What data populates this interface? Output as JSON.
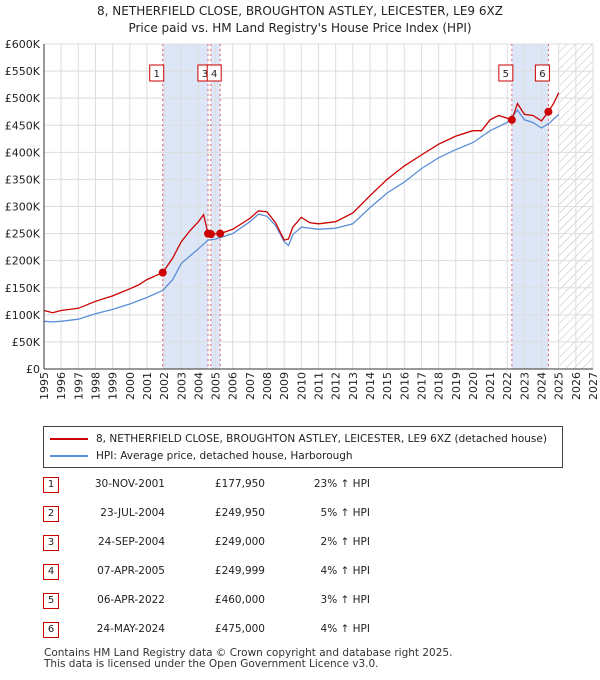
{
  "chart_data": {
    "type": "line",
    "title": "8, NETHERFIELD CLOSE, BROUGHTON ASTLEY, LEICESTER, LE9 6XZ",
    "subtitle": "Price paid vs. HM Land Registry's House Price Index (HPI)",
    "xlim": [
      1995,
      2027
    ],
    "ylim": [
      0,
      600000
    ],
    "x_ticks": [
      "1995",
      "1996",
      "1997",
      "1998",
      "1999",
      "2000",
      "2001",
      "2002",
      "2003",
      "2004",
      "2005",
      "2006",
      "2007",
      "2008",
      "2009",
      "2010",
      "2011",
      "2012",
      "2013",
      "2014",
      "2015",
      "2016",
      "2017",
      "2018",
      "2019",
      "2020",
      "2021",
      "2022",
      "2023",
      "2024",
      "2025",
      "2026",
      "2027"
    ],
    "y_ticks": [
      {
        "value": 0,
        "label": "£0"
      },
      {
        "value": 50000,
        "label": "£50K"
      },
      {
        "value": 100000,
        "label": "£100K"
      },
      {
        "value": 150000,
        "label": "£150K"
      },
      {
        "value": 200000,
        "label": "£200K"
      },
      {
        "value": 250000,
        "label": "£250K"
      },
      {
        "value": 300000,
        "label": "£300K"
      },
      {
        "value": 350000,
        "label": "£350K"
      },
      {
        "value": 400000,
        "label": "£400K"
      },
      {
        "value": 450000,
        "label": "£450K"
      },
      {
        "value": 500000,
        "label": "£500K"
      },
      {
        "value": 550000,
        "label": "£550K"
      },
      {
        "value": 600000,
        "label": "£600K"
      }
    ],
    "data_end": 2025.0,
    "shaded_periods": [
      [
        2001.92,
        2004.56
      ],
      [
        2004.73,
        2005.27
      ],
      [
        2022.27,
        2024.4
      ]
    ],
    "series": [
      {
        "name": "8, NETHERFIELD CLOSE, BROUGHTON ASTLEY, LEICESTER, LE9 6XZ (detached house)",
        "color": "#cc0000",
        "x": [
          1995,
          1995.5,
          1996,
          1997,
          1998,
          1999,
          2000,
          2000.5,
          2001,
          2001.5,
          2001.92,
          2002.5,
          2003,
          2003.5,
          2004.0,
          2004.3,
          2004.56,
          2004.73,
          2005.27,
          2006,
          2007,
          2007.5,
          2008,
          2008.5,
          2009,
          2009.25,
          2009.5,
          2010,
          2010.5,
          2011,
          2012,
          2013,
          2014,
          2015,
          2016,
          2017,
          2018,
          2019,
          2020,
          2020.5,
          2021,
          2021.5,
          2022.27,
          2022.6,
          2023,
          2023.5,
          2024.0,
          2024.4,
          2024.7,
          2025.0
        ],
        "y": [
          108000,
          104000,
          108000,
          112000,
          125000,
          135000,
          148000,
          155000,
          165000,
          172000,
          177950,
          205000,
          235000,
          255000,
          272000,
          285000,
          249950,
          249000,
          249999,
          258000,
          278000,
          292000,
          290000,
          270000,
          238000,
          240000,
          262000,
          280000,
          270000,
          268000,
          272000,
          288000,
          320000,
          350000,
          375000,
          395000,
          415000,
          430000,
          440000,
          440000,
          460000,
          468000,
          460000,
          490000,
          470000,
          468000,
          458000,
          475000,
          490000,
          510000
        ]
      },
      {
        "name": "HPI: Average price, detached house, Harborough",
        "color": "#5b8fd6",
        "x": [
          1995,
          1995.5,
          1996,
          1997,
          1998,
          1999,
          2000,
          2001,
          2001.92,
          2002.5,
          2003,
          2004,
          2004.56,
          2005,
          2006,
          2007,
          2007.5,
          2008,
          2008.5,
          2009,
          2009.25,
          2009.5,
          2010,
          2011,
          2012,
          2013,
          2014,
          2015,
          2016,
          2017,
          2018,
          2019,
          2020,
          2021,
          2022,
          2022.6,
          2023,
          2023.5,
          2024,
          2024.5,
          2025.0
        ],
        "y": [
          88000,
          87000,
          88000,
          92000,
          102000,
          110000,
          120000,
          132000,
          145000,
          165000,
          195000,
          222000,
          238000,
          240000,
          250000,
          272000,
          286000,
          282000,
          265000,
          235000,
          228000,
          248000,
          262000,
          258000,
          260000,
          268000,
          298000,
          325000,
          345000,
          370000,
          390000,
          405000,
          418000,
          440000,
          455000,
          478000,
          460000,
          455000,
          445000,
          455000,
          470000
        ]
      }
    ],
    "sale_markers": [
      {
        "label": "1",
        "x": 2001.92,
        "y": 177950
      },
      {
        "label": "2",
        "x": 2004.56,
        "y": 249950
      },
      {
        "label": "3",
        "x": 2004.73,
        "y": 249000
      },
      {
        "label": "4",
        "x": 2005.27,
        "y": 249999
      },
      {
        "label": "5",
        "x": 2022.27,
        "y": 460000
      },
      {
        "label": "6",
        "x": 2024.4,
        "y": 475000
      }
    ],
    "marker_labels": [
      {
        "label": "1",
        "x": 2001.92
      },
      {
        "label": "3",
        "x": 2004.73
      },
      {
        "label": "4",
        "x": 2005.27
      },
      {
        "label": "5",
        "x": 2022.27
      },
      {
        "label": "6",
        "x": 2024.4
      }
    ]
  },
  "legend": [
    {
      "label": "8, NETHERFIELD CLOSE, BROUGHTON ASTLEY, LEICESTER, LE9 6XZ (detached house)",
      "color": "#cc0000"
    },
    {
      "label": "HPI: Average price, detached house, Harborough",
      "color": "#5b8fd6"
    }
  ],
  "sales": [
    {
      "num": "1",
      "date": "30-NOV-2001",
      "price": "£177,950",
      "hpi": "23% ↑ HPI"
    },
    {
      "num": "2",
      "date": "23-JUL-2004",
      "price": "£249,950",
      "hpi": "5% ↑ HPI"
    },
    {
      "num": "3",
      "date": "24-SEP-2004",
      "price": "£249,000",
      "hpi": "2% ↑ HPI"
    },
    {
      "num": "4",
      "date": "07-APR-2005",
      "price": "£249,999",
      "hpi": "4% ↑ HPI"
    },
    {
      "num": "5",
      "date": "06-APR-2022",
      "price": "£460,000",
      "hpi": "3% ↑ HPI"
    },
    {
      "num": "6",
      "date": "24-MAY-2024",
      "price": "£475,000",
      "hpi": "4% ↑ HPI"
    }
  ],
  "footer": {
    "line1": "Contains HM Land Registry data © Crown copyright and database right 2025.",
    "line2": "This data is licensed under the Open Government Licence v3.0."
  }
}
